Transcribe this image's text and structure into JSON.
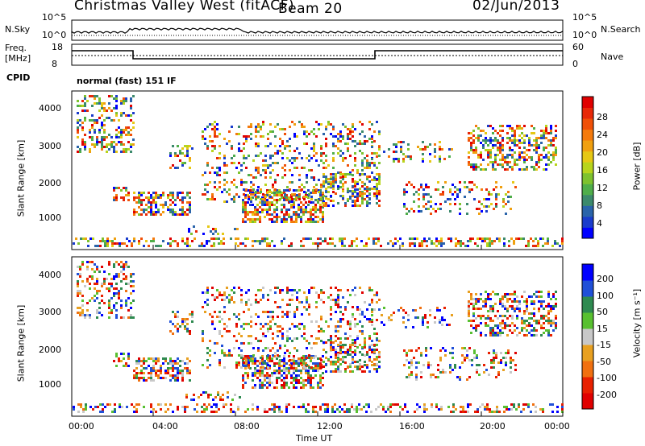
{
  "header": {
    "station": "Christmas Valley West (fitACF)",
    "beam": "Beam 20",
    "date": "02/Jun/2013"
  },
  "noise_panel": {
    "left_label": "N.Sky",
    "right_label": "N.Search",
    "left_ticks": [
      "10^5",
      "10^0"
    ],
    "right_ticks": [
      "10^5",
      "10^0"
    ]
  },
  "freq_panel": {
    "left_label_1": "Freq.",
    "left_label_2": "[MHz]",
    "right_label": "Nave",
    "left_ticks": [
      "18",
      "8"
    ],
    "right_ticks": [
      "60",
      "0"
    ],
    "cpid_label": "CPID",
    "cpid_text": "normal (fast) 151 IF"
  },
  "chart_data": [
    {
      "type": "heatmap",
      "title": "",
      "ylabel": "Slant Range [km]",
      "xlabel": "",
      "ylim": [
        180,
        4500
      ],
      "y_ticks": [
        "1000",
        "2000",
        "3000",
        "4000"
      ],
      "colorbar": {
        "label": "Power [dB]",
        "ticks": [
          "4",
          "8",
          "12",
          "16",
          "20",
          "24",
          "28"
        ],
        "colors": [
          "#0000ff",
          "#1a3ccc",
          "#2a64aa",
          "#3c8a6c",
          "#4fae4a",
          "#7ec22e",
          "#b8d41c",
          "#e6c814",
          "#f0a010",
          "#f47a0c",
          "#f05008",
          "#e82808",
          "#e00000"
        ]
      }
    },
    {
      "type": "heatmap",
      "title": "",
      "ylabel": "Slant Range [km]",
      "xlabel": "Time UT",
      "ylim": [
        180,
        4500
      ],
      "y_ticks": [
        "1000",
        "2000",
        "3000",
        "4000"
      ],
      "x_ticks": [
        "00:00",
        "04:00",
        "08:00",
        "12:00",
        "16:00",
        "20:00",
        "00:00"
      ],
      "colorbar": {
        "label": "Velocity [m s⁻¹]",
        "ticks": [
          "200",
          "100",
          "50",
          "15",
          "-15",
          "-50",
          "-100",
          "-200"
        ],
        "colors": [
          "#0000ff",
          "#2050d8",
          "#2e8a50",
          "#58c030",
          "#c8c8c8",
          "#e8a020",
          "#f07010",
          "#e82000",
          "#e00000"
        ]
      }
    }
  ]
}
